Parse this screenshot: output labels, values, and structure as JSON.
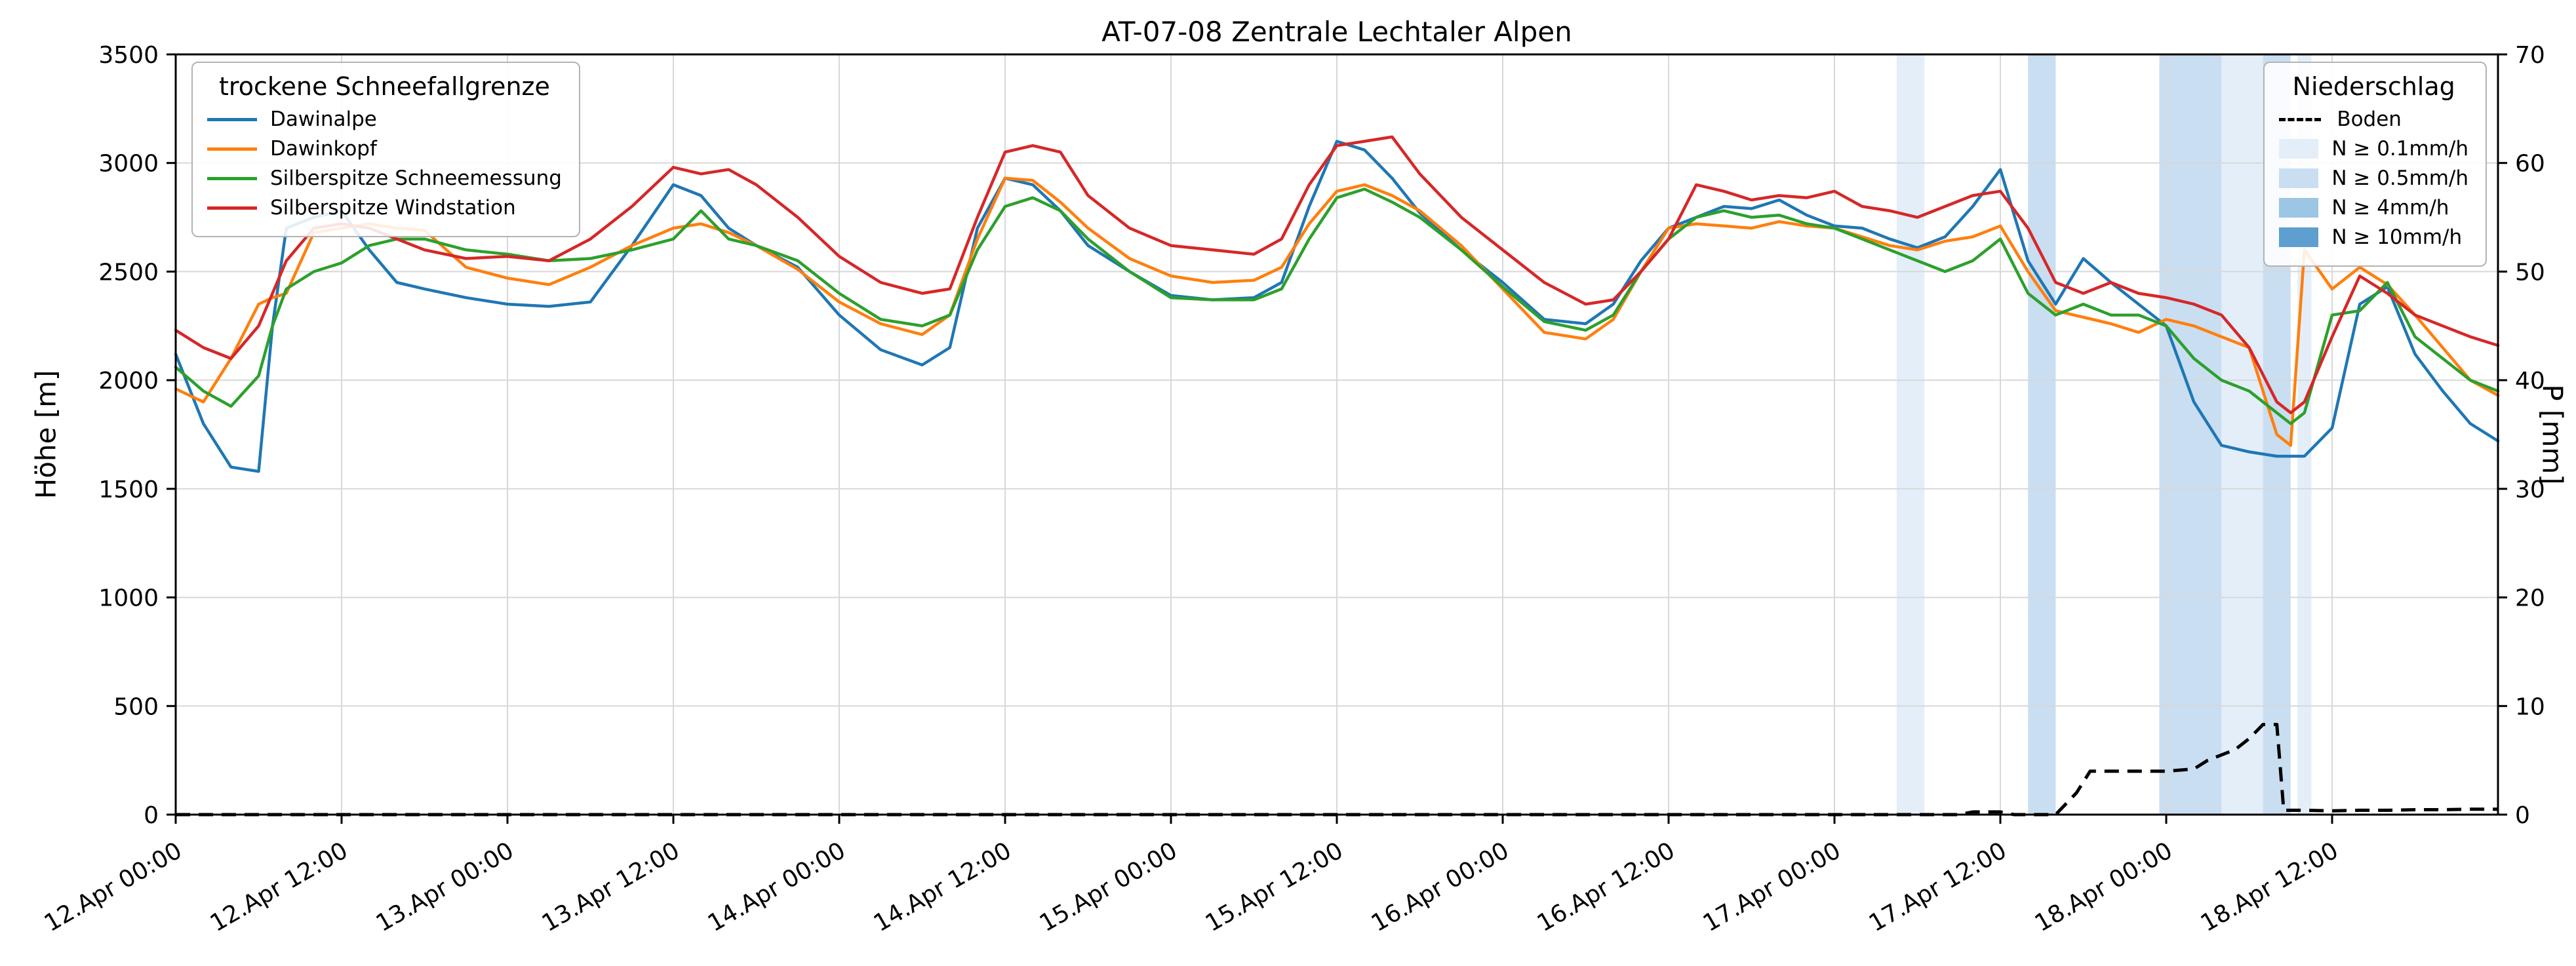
{
  "chart_data": {
    "type": "line",
    "title": "AT-07-08 Zentrale Lechtaler Alpen",
    "ylabel": "Höhe [m]",
    "y2label": "P [mm]",
    "x_unit": "hours after 12.Apr 00:00",
    "xlim_hours": [
      0,
      168
    ],
    "ylim": [
      0,
      3500
    ],
    "y2lim": [
      0,
      70
    ],
    "grid": true,
    "yticks": [
      0,
      500,
      1000,
      1500,
      2000,
      2500,
      3000,
      3500
    ],
    "y2ticks": [
      0,
      10,
      20,
      30,
      40,
      50,
      60,
      70
    ],
    "xticks": [
      {
        "t": 0,
        "label": "12.Apr 00:00"
      },
      {
        "t": 12,
        "label": "12.Apr 12:00"
      },
      {
        "t": 24,
        "label": "13.Apr 00:00"
      },
      {
        "t": 36,
        "label": "13.Apr 12:00"
      },
      {
        "t": 48,
        "label": "14.Apr 00:00"
      },
      {
        "t": 60,
        "label": "14.Apr 12:00"
      },
      {
        "t": 72,
        "label": "15.Apr 00:00"
      },
      {
        "t": 84,
        "label": "15.Apr 12:00"
      },
      {
        "t": 96,
        "label": "16.Apr 00:00"
      },
      {
        "t": 108,
        "label": "16.Apr 12:00"
      },
      {
        "t": 120,
        "label": "17.Apr 00:00"
      },
      {
        "t": 132,
        "label": "17.Apr 12:00"
      },
      {
        "t": 144,
        "label": "18.Apr 00:00"
      },
      {
        "t": 156,
        "label": "18.Apr 12:00"
      }
    ],
    "legend1": {
      "title": "trockene Schneefallgrenze"
    },
    "legend2": {
      "title": "Niederschlag",
      "entries": [
        {
          "label": "Boden",
          "type": "dashed-line",
          "color": "#000000"
        },
        {
          "label": "N ≥ 0.1mm/h",
          "type": "patch",
          "level": "0.1"
        },
        {
          "label": "N ≥ 0.5mm/h",
          "type": "patch",
          "level": "0.5"
        },
        {
          "label": "N ≥ 4mm/h",
          "type": "patch",
          "level": "4"
        },
        {
          "label": "N ≥ 10mm/h",
          "type": "patch",
          "level": "10"
        }
      ]
    },
    "band_colors": {
      "0.1": "#e3eef9",
      "0.5": "#c9def1",
      "4": "#9cc6e4",
      "10": "#5e9fd0"
    },
    "precip_bands": [
      {
        "start": 124.5,
        "end": 126.5,
        "level": "0.1"
      },
      {
        "start": 134,
        "end": 136,
        "level": "0.5"
      },
      {
        "start": 143.5,
        "end": 148,
        "level": "0.5"
      },
      {
        "start": 148,
        "end": 151,
        "level": "0.1"
      },
      {
        "start": 151,
        "end": 153,
        "level": "0.5"
      },
      {
        "start": 153.5,
        "end": 154.5,
        "level": "0.1"
      }
    ],
    "x_hours": [
      0,
      2,
      4,
      6,
      7,
      8,
      10,
      12,
      14,
      16,
      18,
      21,
      24,
      27,
      30,
      33,
      36,
      38,
      40,
      42,
      45,
      48,
      51,
      54,
      56,
      58,
      60,
      62,
      64,
      66,
      69,
      72,
      75,
      78,
      80,
      82,
      84,
      86,
      88,
      90,
      93,
      96,
      99,
      102,
      104,
      106,
      108,
      110,
      112,
      114,
      116,
      118,
      120,
      122,
      124,
      126,
      128,
      130,
      132,
      134,
      136,
      138,
      140,
      142,
      144,
      146,
      148,
      150,
      152,
      153,
      154,
      156,
      158,
      160,
      162,
      164,
      166,
      168
    ],
    "series": [
      {
        "name": "Dawinalpe",
        "color": "#1f77b4",
        "values": [
          2120,
          1800,
          1600,
          1580,
          2250,
          2700,
          2750,
          2780,
          2600,
          2450,
          2420,
          2380,
          2350,
          2340,
          2360,
          2620,
          2900,
          2850,
          2700,
          2620,
          2520,
          2300,
          2140,
          2070,
          2150,
          2700,
          2930,
          2900,
          2780,
          2620,
          2500,
          2390,
          2370,
          2380,
          2450,
          2800,
          3100,
          3060,
          2930,
          2770,
          2600,
          2450,
          2280,
          2260,
          2350,
          2550,
          2700,
          2750,
          2800,
          2790,
          2830,
          2760,
          2710,
          2700,
          2650,
          2610,
          2660,
          2800,
          2970,
          2550,
          2350,
          2560,
          2450,
          2350,
          2250,
          1900,
          1700,
          1670,
          1650,
          1650,
          1650,
          1780,
          2350,
          2430,
          2120,
          1950,
          1800,
          1720
        ]
      },
      {
        "name": "Dawinkopf",
        "color": "#ff7f0e",
        "values": [
          1960,
          1900,
          2100,
          2350,
          2380,
          2400,
          2680,
          2700,
          2720,
          2700,
          2690,
          2520,
          2470,
          2440,
          2520,
          2620,
          2700,
          2720,
          2680,
          2620,
          2510,
          2360,
          2260,
          2210,
          2300,
          2650,
          2930,
          2920,
          2820,
          2700,
          2560,
          2480,
          2450,
          2460,
          2520,
          2720,
          2870,
          2900,
          2850,
          2780,
          2620,
          2420,
          2220,
          2190,
          2280,
          2500,
          2700,
          2720,
          2710,
          2700,
          2730,
          2710,
          2700,
          2660,
          2620,
          2600,
          2640,
          2660,
          2710,
          2500,
          2320,
          2290,
          2260,
          2220,
          2280,
          2250,
          2200,
          2150,
          1750,
          1700,
          2600,
          2420,
          2520,
          2440,
          2300,
          2150,
          2000,
          1930
        ]
      },
      {
        "name": "Silberspitze Schneemessung",
        "color": "#2ca02c",
        "values": [
          2060,
          1950,
          1880,
          2020,
          2250,
          2420,
          2500,
          2540,
          2620,
          2650,
          2650,
          2600,
          2580,
          2550,
          2560,
          2600,
          2650,
          2780,
          2650,
          2620,
          2550,
          2400,
          2280,
          2250,
          2300,
          2600,
          2800,
          2840,
          2780,
          2650,
          2500,
          2380,
          2370,
          2370,
          2420,
          2650,
          2840,
          2880,
          2820,
          2750,
          2600,
          2430,
          2270,
          2230,
          2300,
          2500,
          2650,
          2750,
          2780,
          2750,
          2760,
          2720,
          2700,
          2650,
          2600,
          2550,
          2500,
          2550,
          2650,
          2400,
          2300,
          2350,
          2300,
          2300,
          2250,
          2100,
          2000,
          1950,
          1850,
          1800,
          1850,
          2300,
          2320,
          2450,
          2200,
          2100,
          2000,
          1950
        ]
      },
      {
        "name": "Silberspitze Windstation",
        "color": "#d62728",
        "values": [
          2230,
          2150,
          2100,
          2250,
          2400,
          2550,
          2700,
          2720,
          2700,
          2650,
          2600,
          2560,
          2570,
          2550,
          2650,
          2800,
          2980,
          2950,
          2970,
          2900,
          2750,
          2570,
          2450,
          2400,
          2420,
          2750,
          3050,
          3080,
          3050,
          2850,
          2700,
          2620,
          2600,
          2580,
          2650,
          2900,
          3080,
          3100,
          3120,
          2950,
          2750,
          2600,
          2450,
          2350,
          2370,
          2500,
          2650,
          2900,
          2870,
          2830,
          2850,
          2840,
          2870,
          2800,
          2780,
          2750,
          2800,
          2850,
          2870,
          2700,
          2450,
          2400,
          2450,
          2400,
          2380,
          2350,
          2300,
          2150,
          1900,
          1850,
          1900,
          2200,
          2480,
          2400,
          2300,
          2250,
          2200,
          2160
        ]
      }
    ],
    "boden": {
      "name": "Boden",
      "color": "#000000",
      "style": "dashed",
      "x_hours": [
        0,
        24,
        48,
        72,
        96,
        120,
        129,
        130,
        132,
        133,
        136,
        137.5,
        138.5,
        140,
        142,
        144,
        146,
        147,
        148,
        149,
        150,
        151,
        152,
        152.5,
        154,
        156,
        158,
        160,
        162,
        164,
        166,
        168
      ],
      "values_mm": [
        0,
        0,
        0,
        0,
        0,
        0,
        0,
        0.25,
        0.25,
        0,
        0,
        2,
        4,
        4,
        4,
        4,
        4.2,
        5,
        5.5,
        6,
        7,
        8.3,
        8.3,
        0.4,
        0.4,
        0.35,
        0.4,
        0.4,
        0.45,
        0.45,
        0.5,
        0.5
      ]
    }
  }
}
